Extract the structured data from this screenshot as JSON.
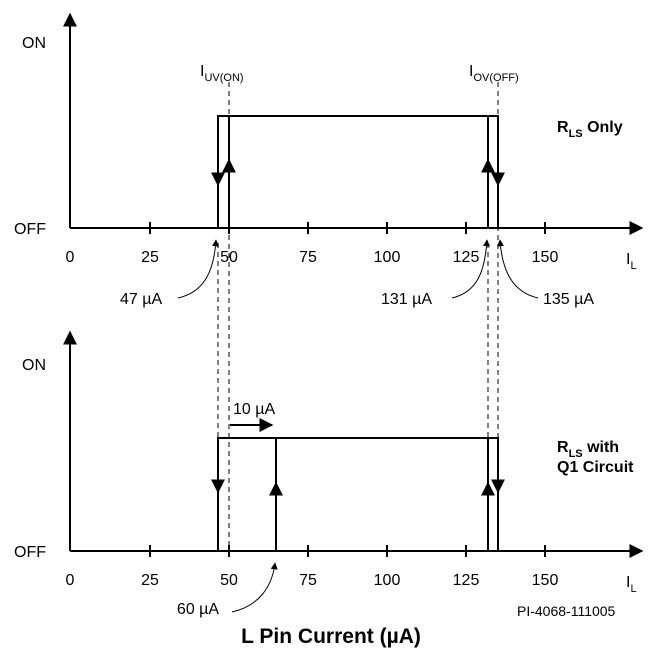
{
  "top": {
    "y_on": "ON",
    "y_off": "OFF",
    "x_ticks": [
      "0",
      "25",
      "50",
      "75",
      "100",
      "125",
      "150"
    ],
    "x_axis_label": "I",
    "x_axis_sub": "L",
    "marker_uv": "I",
    "marker_uv_sub": "UV(ON)",
    "marker_ov": "I",
    "marker_ov_sub": "OV(OFF)",
    "callout_47": "47 µA",
    "callout_131": "131 µA",
    "callout_135": "135 µA",
    "legend_main": "R",
    "legend_sub": "LS",
    "legend_rest": " Only"
  },
  "bottom": {
    "y_on": "ON",
    "y_off": "OFF",
    "x_ticks": [
      "0",
      "25",
      "50",
      "75",
      "100",
      "125",
      "150"
    ],
    "x_axis_label": "I",
    "x_axis_sub": "L",
    "shift_label": "10 µA",
    "callout_60": "60 µA",
    "legend_main": "R",
    "legend_sub": "LS",
    "legend_rest": " with",
    "legend_line2": "Q1 Circuit"
  },
  "footer": {
    "ref_code": "PI-4068-111005",
    "title": "L Pin Current (µA)"
  },
  "icons": [
    "arrow-up-icon",
    "arrow-down-icon",
    "arrow-right-icon"
  ]
}
